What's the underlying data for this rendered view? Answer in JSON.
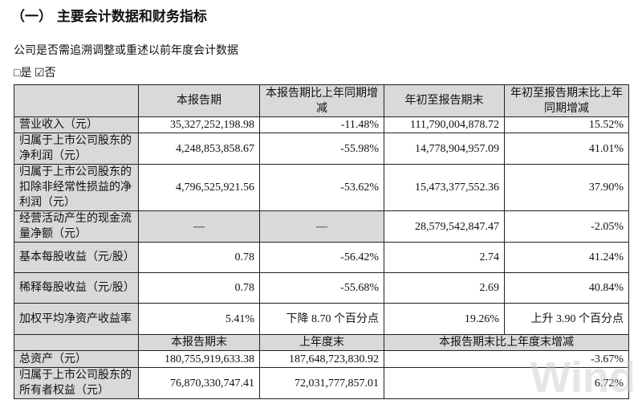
{
  "title": "（一） 主要会计数据和财务指标",
  "question": "公司是否需追溯调整或重述以前年度会计数据",
  "options": {
    "yes": "□是",
    "no": "☑否"
  },
  "header": [
    "",
    "本报告期",
    "本报告期比上年同期增减",
    "年初至报告期末",
    "年初至报告期末比上年同期增减"
  ],
  "rows": [
    [
      "营业收入（元）",
      "35,327,252,198.98",
      "-11.48%",
      "111,790,004,878.72",
      "15.52%"
    ],
    [
      "归属于上市公司股东的净利润（元）",
      "4,248,853,858.67",
      "-55.98%",
      "14,778,904,957.09",
      "41.01%"
    ],
    [
      "归属于上市公司股东的扣除非经常性损益的净利润（元）",
      "4,796,525,921.56",
      "-53.62%",
      "15,473,377,552.36",
      "37.90%"
    ],
    [
      "经营活动产生的现金流量净额（元）",
      "—",
      "—",
      "28,579,542,847.47",
      "-2.05%"
    ],
    [
      "基本每股收益（元/股）",
      "0.78",
      "-56.42%",
      "2.74",
      "41.24%"
    ],
    [
      "稀释每股收益（元/股）",
      "0.78",
      "-55.68%",
      "2.69",
      "40.84%"
    ],
    [
      "加权平均净资产收益率",
      "5.41%",
      "下降 8.70 个百分点",
      "19.26%",
      "上升 3.90 个百分点"
    ]
  ],
  "header2": [
    "",
    "本报告期末",
    "上年度末",
    "本报告期末比上年度末增减"
  ],
  "rows2": [
    [
      "总资产（元）",
      "180,755,919,633.38",
      "187,648,723,830.92",
      "-3.67%"
    ],
    [
      "归属于上市公司股东的所有者权益（元）",
      "76,870,330,747.41",
      "72,031,777,857.01",
      "6.72%"
    ]
  ],
  "watermark": "Wind"
}
